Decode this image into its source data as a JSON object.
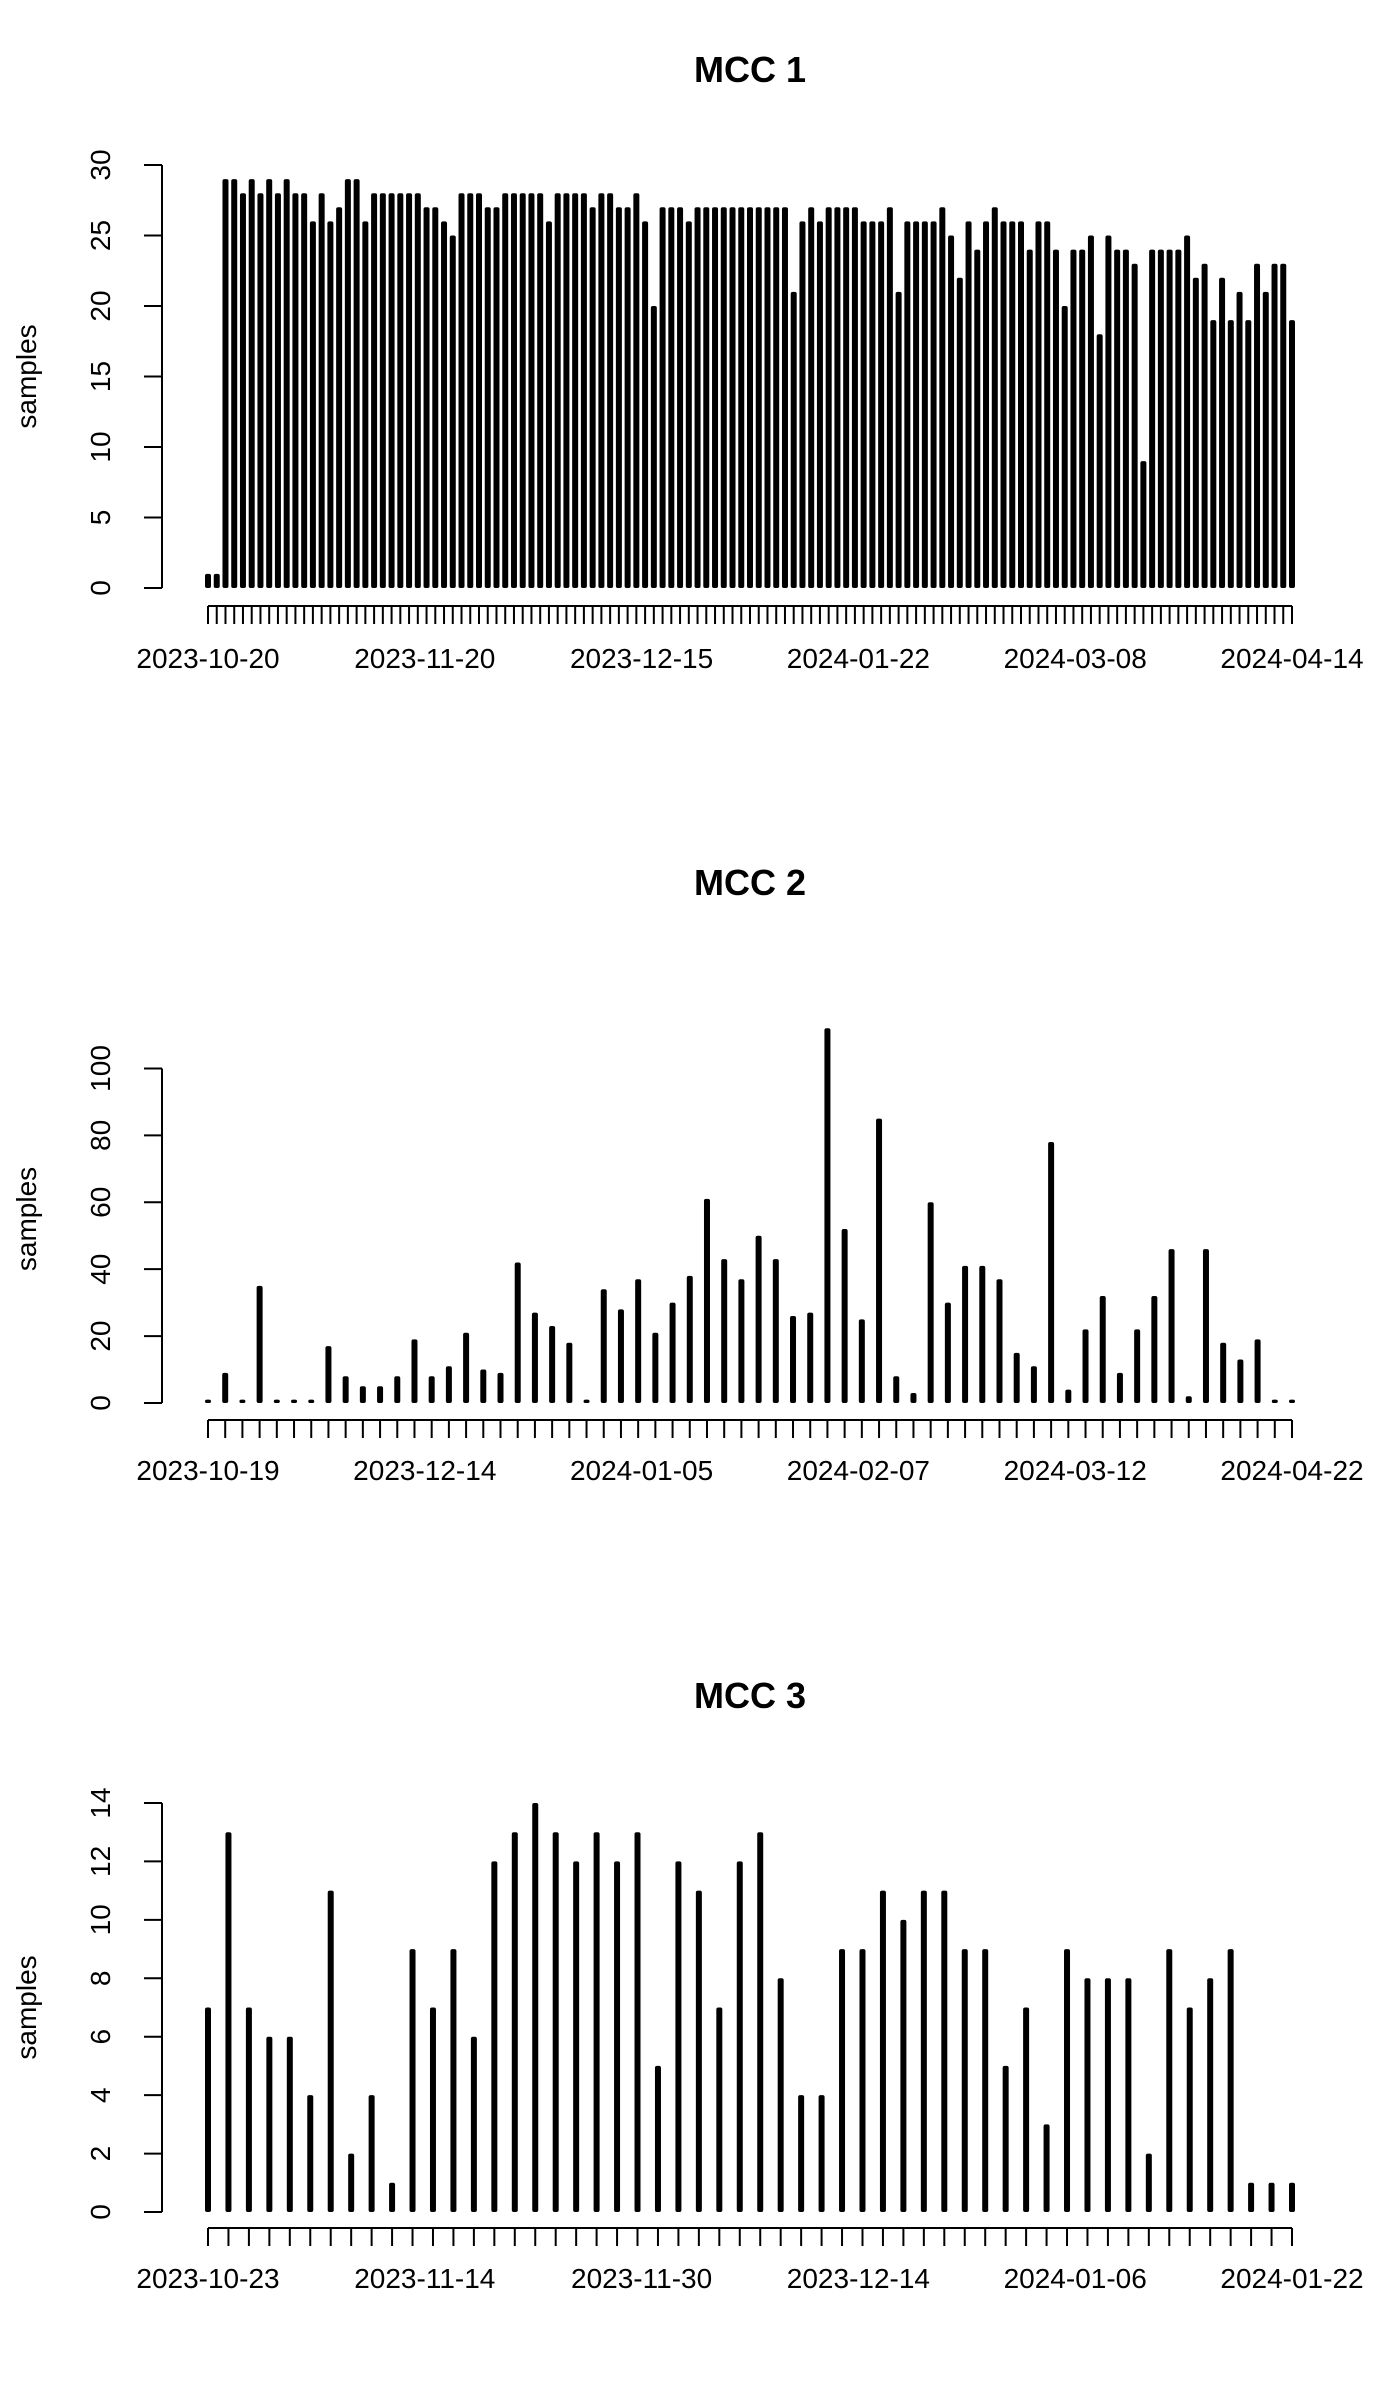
{
  "chart_data": [
    {
      "type": "bar",
      "title": "MCC 1",
      "ylabel": "samples",
      "xlabel": "",
      "ylim": [
        0,
        30
      ],
      "yticks": [
        0,
        5,
        10,
        15,
        20,
        25,
        30
      ],
      "xtick_labels": [
        "2023-10-20",
        "2023-11-20",
        "2023-12-15",
        "2024-01-22",
        "2024-03-08",
        "2024-04-14"
      ],
      "values": [
        1,
        1,
        29,
        29,
        28,
        29,
        28,
        29,
        28,
        29,
        28,
        28,
        26,
        28,
        26,
        27,
        29,
        29,
        26,
        28,
        28,
        28,
        28,
        28,
        28,
        27,
        27,
        26,
        25,
        28,
        28,
        28,
        27,
        27,
        28,
        28,
        28,
        28,
        28,
        26,
        28,
        28,
        28,
        28,
        27,
        28,
        28,
        27,
        27,
        28,
        26,
        20,
        27,
        27,
        27,
        26,
        27,
        27,
        27,
        27,
        27,
        27,
        27,
        27,
        27,
        27,
        27,
        21,
        26,
        27,
        26,
        27,
        27,
        27,
        27,
        26,
        26,
        26,
        27,
        21,
        26,
        26,
        26,
        26,
        27,
        25,
        22,
        26,
        24,
        26,
        27,
        26,
        26,
        26,
        24,
        26,
        26,
        24,
        20,
        24,
        24,
        25,
        18,
        25,
        24,
        24,
        23,
        9,
        24,
        24,
        24,
        24,
        25,
        22,
        23,
        19,
        22,
        19,
        21,
        19,
        23,
        21,
        23,
        23,
        19
      ]
    },
    {
      "type": "bar",
      "title": "MCC 2",
      "ylabel": "samples",
      "xlabel": "",
      "ylim": [
        0,
        110
      ],
      "yticks": [
        0,
        20,
        40,
        60,
        80,
        100
      ],
      "xtick_labels": [
        "2023-10-19",
        "2023-12-14",
        "2024-01-05",
        "2024-02-07",
        "2024-03-12",
        "2024-04-22"
      ],
      "values": [
        1,
        9,
        1,
        35,
        1,
        1,
        1,
        17,
        8,
        5,
        5,
        8,
        19,
        8,
        11,
        21,
        10,
        9,
        42,
        27,
        23,
        18,
        1,
        34,
        28,
        37,
        21,
        30,
        38,
        61,
        43,
        37,
        50,
        43,
        26,
        27,
        112,
        52,
        25,
        85,
        8,
        3,
        60,
        30,
        41,
        41,
        37,
        15,
        11,
        78,
        4,
        22,
        32,
        9,
        22,
        32,
        46,
        2,
        46,
        18,
        13,
        19,
        1,
        1
      ]
    },
    {
      "type": "bar",
      "title": "MCC 3",
      "ylabel": "samples",
      "xlabel": "",
      "ylim": [
        0,
        14
      ],
      "yticks": [
        0,
        2,
        4,
        6,
        8,
        10,
        12,
        14
      ],
      "xtick_labels": [
        "2023-10-23",
        "2023-11-14",
        "2023-11-30",
        "2023-12-14",
        "2024-01-06",
        "2024-01-22"
      ],
      "values": [
        7,
        13,
        7,
        6,
        6,
        4,
        11,
        2,
        4,
        1,
        9,
        7,
        9,
        6,
        12,
        13,
        14,
        13,
        12,
        13,
        12,
        13,
        5,
        12,
        11,
        7,
        12,
        13,
        8,
        4,
        4,
        9,
        9,
        11,
        10,
        11,
        11,
        9,
        9,
        5,
        7,
        3,
        9,
        8,
        8,
        8,
        2,
        9,
        7,
        8,
        9,
        1,
        1,
        1
      ]
    }
  ]
}
